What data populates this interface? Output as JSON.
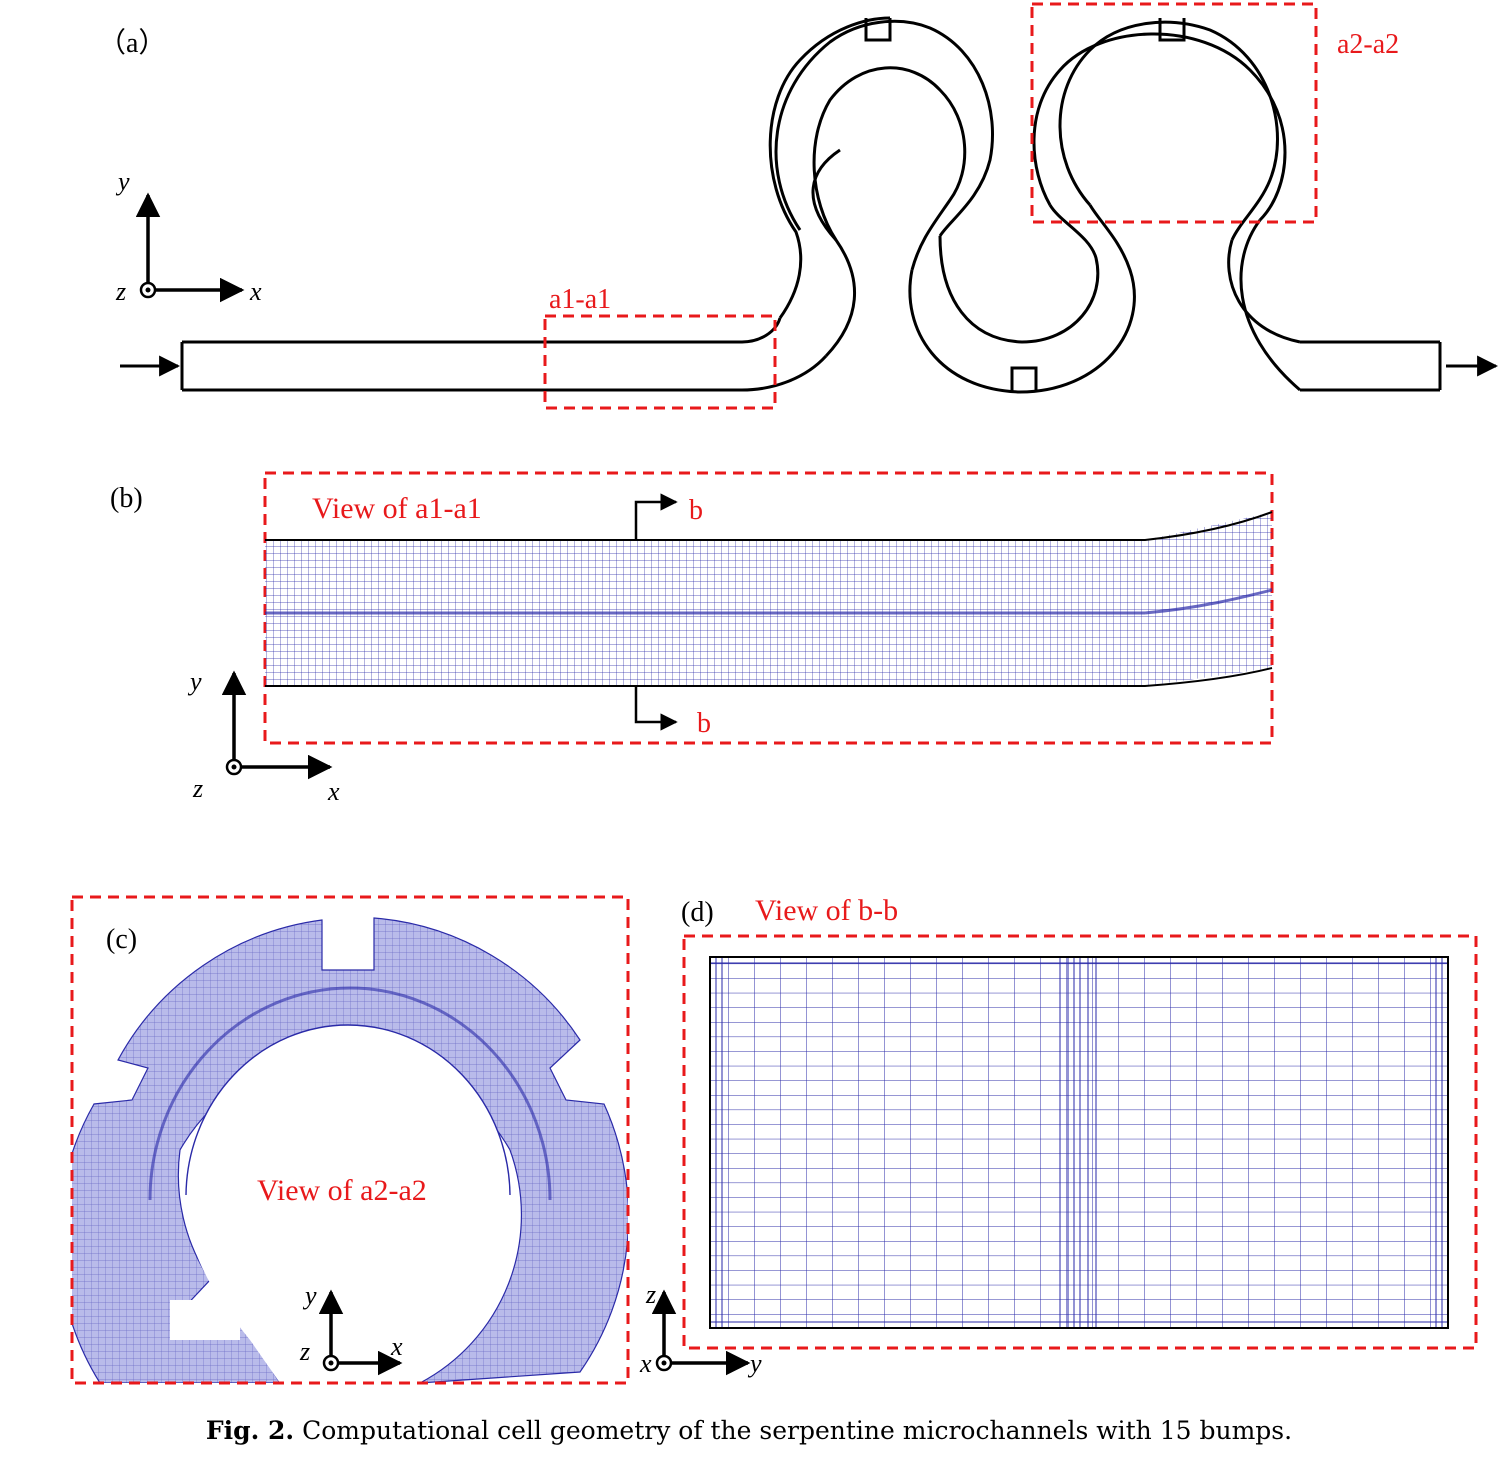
{
  "panel_a": {
    "label": "（a）",
    "region_a1": "a1-a1",
    "region_a2": "a2-a2",
    "axes": {
      "y": "y",
      "x": "x",
      "z": "z"
    }
  },
  "panel_b": {
    "label": "(b)",
    "view_title": "View of a1-a1",
    "section_top": "b",
    "section_bottom": "b",
    "axes": {
      "y": "y",
      "x": "x",
      "z": "z"
    }
  },
  "panel_c": {
    "label": "(c)",
    "view_title": "View of a2-a2",
    "axes": {
      "y": "y",
      "x": "x",
      "z": "z"
    }
  },
  "panel_d": {
    "label": "(d)",
    "view_title": "View of b-b",
    "axes": {
      "z": "z",
      "x": "x",
      "y": "y"
    }
  },
  "caption": {
    "fig": "Fig. 2.",
    "text": "Computational cell geometry of the serpentine microchannels with 15 bumps."
  },
  "colors": {
    "red": "#e8191b",
    "mesh": "#2a2aa8",
    "mesh_fill": "#b9bbea",
    "line": "#000000"
  }
}
